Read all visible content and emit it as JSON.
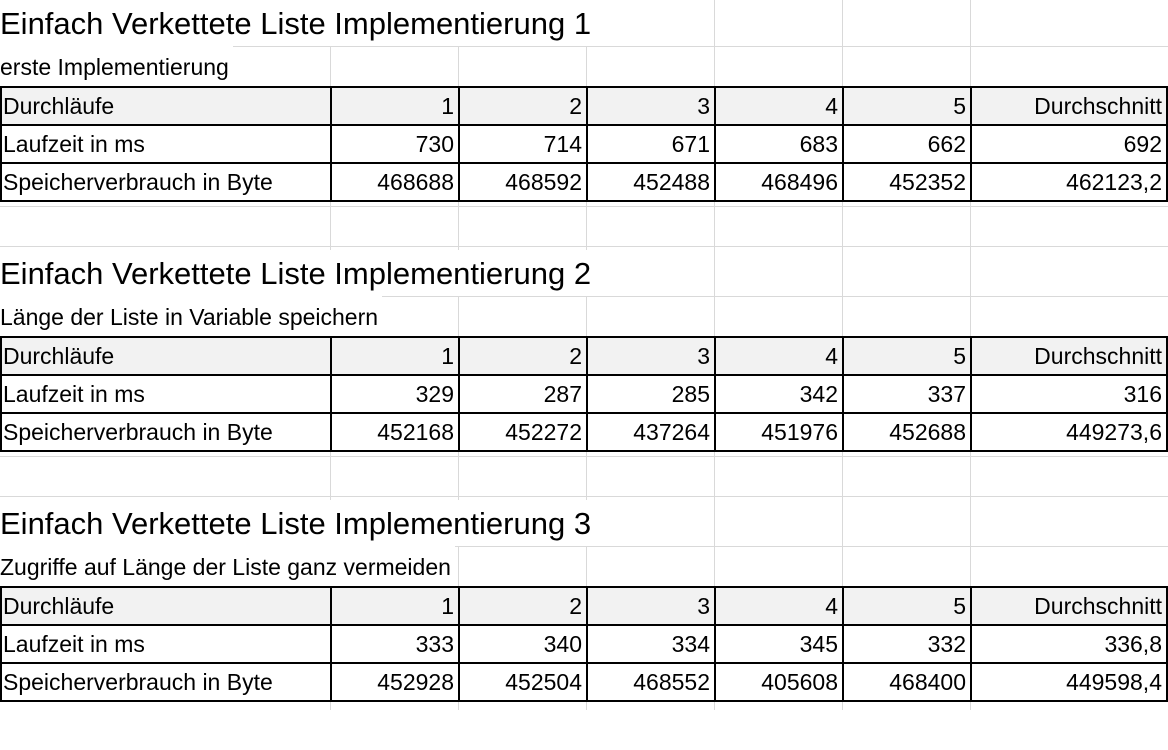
{
  "sections": [
    {
      "title": "Einfach Verkettete Liste Implementierung 1",
      "subtitle": "erste Implementierung",
      "header": [
        "Durchläufe",
        "1",
        "2",
        "3",
        "4",
        "5",
        "Durchschnitt"
      ],
      "rows": [
        [
          "Laufzeit in ms",
          "730",
          "714",
          "671",
          "683",
          "662",
          "692"
        ],
        [
          "Speicherverbrauch in Byte",
          "468688",
          "468592",
          "452488",
          "468496",
          "452352",
          "462123,2"
        ]
      ]
    },
    {
      "title": "Einfach Verkettete Liste Implementierung 2",
      "subtitle": "Länge der Liste in Variable speichern",
      "header": [
        "Durchläufe",
        "1",
        "2",
        "3",
        "4",
        "5",
        "Durchschnitt"
      ],
      "rows": [
        [
          "Laufzeit in ms",
          "329",
          "287",
          "285",
          "342",
          "337",
          "316"
        ],
        [
          "Speicherverbrauch in Byte",
          "452168",
          "452272",
          "437264",
          "451976",
          "452688",
          "449273,6"
        ]
      ]
    },
    {
      "title": "Einfach Verkettete Liste Implementierung 3",
      "subtitle": "Zugriffe auf Länge der Liste ganz vermeiden",
      "header": [
        "Durchläufe",
        "1",
        "2",
        "3",
        "4",
        "5",
        "Durchschnitt"
      ],
      "rows": [
        [
          "Laufzeit in ms",
          "333",
          "340",
          "334",
          "345",
          "332",
          "336,8"
        ],
        [
          "Speicherverbrauch in Byte",
          "452928",
          "452504",
          "468552",
          "405608",
          "468400",
          "449598,4"
        ]
      ]
    }
  ]
}
